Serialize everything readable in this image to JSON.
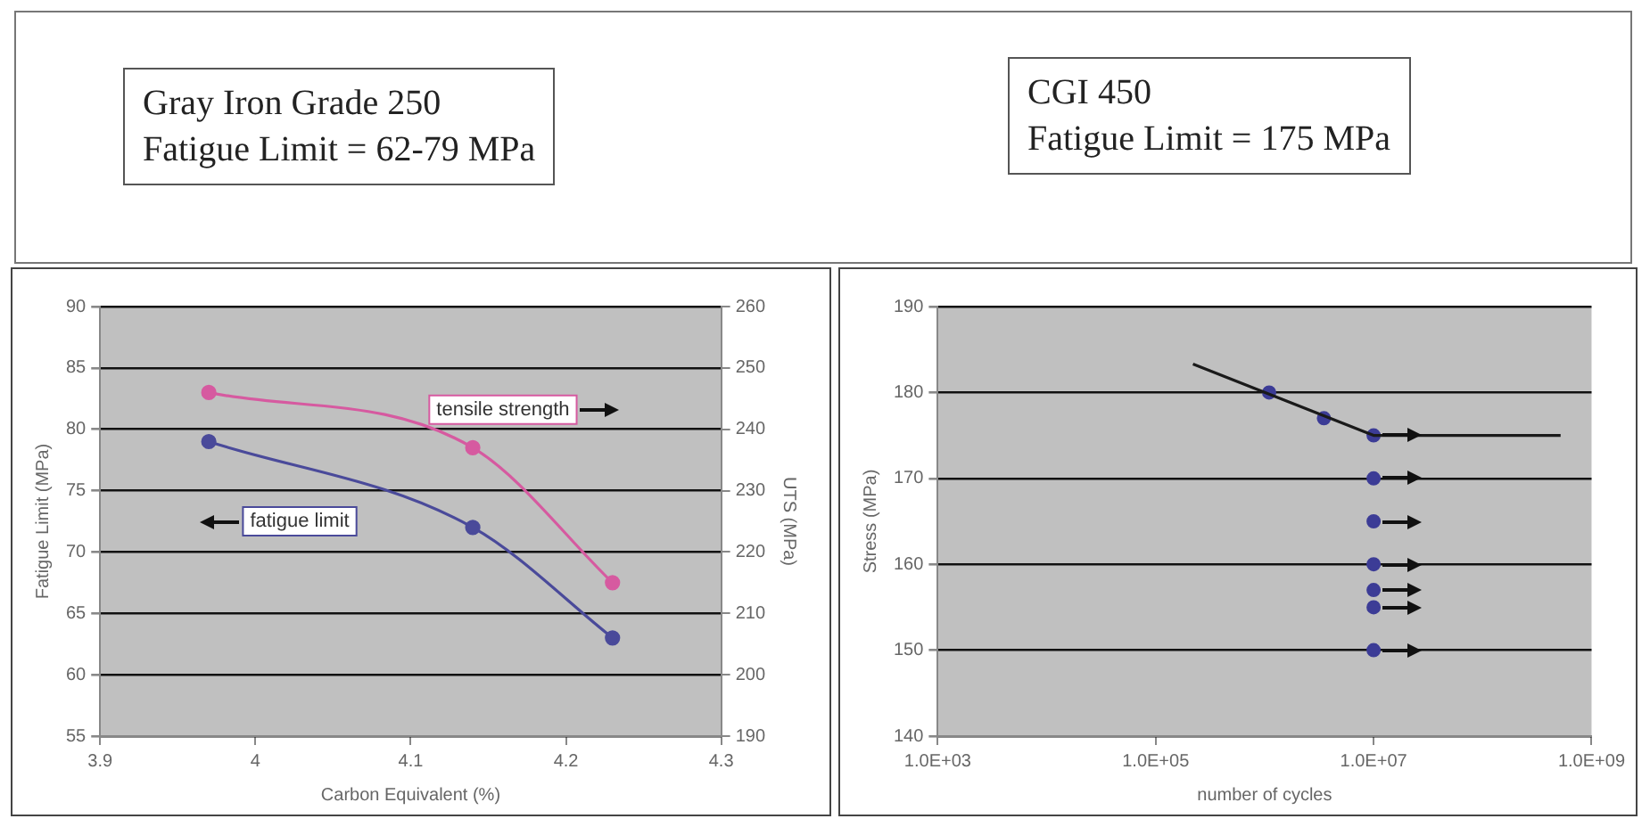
{
  "chart_data": [
    {
      "type": "line",
      "title": "Gray Iron Grade 250",
      "subtitle": "Fatigue Limit = 62-79 MPa",
      "xlabel": "Carbon Equivalent (%)",
      "ylabel": "Fatigue Limit (MPa)",
      "y2label": "UTS (MPa)",
      "x": [
        3.97,
        4.14,
        4.23
      ],
      "series": [
        {
          "name": "fatigue limit",
          "color": "#4a4a9a",
          "values": [
            79,
            72,
            63
          ]
        },
        {
          "name": "tensile strength",
          "color": "#d65aa0",
          "values": [
            246,
            237,
            215
          ],
          "axis": "y2"
        }
      ],
      "xlim": [
        3.9,
        4.3
      ],
      "xticks": [
        3.9,
        4,
        4.1,
        4.2,
        4.3
      ],
      "ylim": [
        55,
        90
      ],
      "yticks": [
        55,
        60,
        65,
        70,
        75,
        80,
        85,
        90
      ],
      "y2lim": [
        190,
        260
      ],
      "y2ticks": [
        190,
        200,
        210,
        220,
        230,
        240,
        250,
        260
      ],
      "grid": "y",
      "legend": false,
      "marker": "circle"
    },
    {
      "type": "scatter",
      "title": "CGI 450",
      "subtitle": "Fatigue Limit = 175 MPa",
      "xlabel": "number of cycles",
      "ylabel": "Stress (MPa)",
      "series": [
        {
          "type": "line",
          "color": "#1a1a1a",
          "x": [
            220000,
            10000000,
            520000000
          ],
          "values": [
            183.3,
            175,
            175
          ],
          "marker": "none"
        },
        {
          "type": "scatter",
          "color": "#3c3c96",
          "x": [
            1100000,
            3500000,
            10000000,
            10000000,
            10000000,
            10000000,
            10000000,
            10000000,
            10000000
          ],
          "values": [
            180,
            177,
            175,
            170,
            165,
            160,
            157,
            155,
            150
          ],
          "marker": "circle"
        }
      ],
      "log": "x",
      "xlim": [
        1000,
        1000000000
      ],
      "xticks": [
        {
          "value": 1000,
          "label": "1.0E+03"
        },
        {
          "value": 100000,
          "label": "1.0E+05"
        },
        {
          "value": 10000000,
          "label": "1.0E+07"
        },
        {
          "value": 1000000000,
          "label": "1.0E+09"
        }
      ],
      "ylim": [
        140,
        190
      ],
      "yticks": [
        140,
        150,
        160,
        170,
        180,
        190
      ],
      "grid": "y",
      "legend": false
    }
  ]
}
